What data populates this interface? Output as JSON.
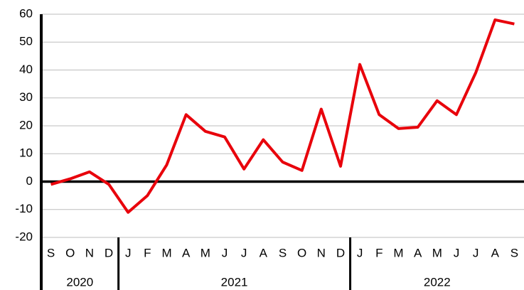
{
  "chart_data": {
    "type": "line",
    "categories": [
      "S",
      "O",
      "N",
      "D",
      "J",
      "F",
      "M",
      "A",
      "M",
      "J",
      "J",
      "A",
      "S",
      "O",
      "N",
      "D",
      "J",
      "F",
      "M",
      "A",
      "M",
      "J",
      "J",
      "A",
      "S"
    ],
    "values": [
      -1,
      1,
      3.5,
      -1,
      -11,
      -5,
      6,
      24,
      18,
      16,
      4.5,
      15,
      7,
      4,
      26,
      5.5,
      42,
      24,
      19,
      19.5,
      29,
      24,
      39,
      58,
      56.5
    ],
    "year_groups": [
      {
        "label": "2020",
        "span": 4
      },
      {
        "label": "2021",
        "span": 12
      },
      {
        "label": "2022",
        "span": 9
      }
    ],
    "color": "#e8000b",
    "ylim": [
      -20,
      60
    ],
    "yticks": [
      -20,
      -10,
      0,
      10,
      20,
      30,
      40,
      50,
      60
    ],
    "grid": true
  }
}
